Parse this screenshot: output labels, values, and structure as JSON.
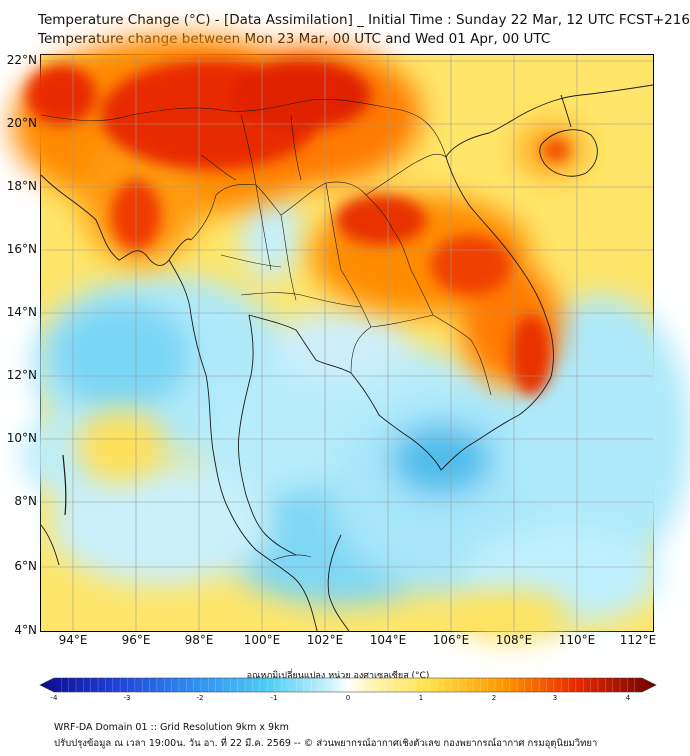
{
  "header": {
    "title": "Temperature Change (°C) - [Data Assimilation] _ Initial Time : Sunday 22 Mar, 12 UTC FCST+216",
    "subtitle": "Temperature change between Mon 23 Mar, 00 UTC and Wed 01 Apr, 00 UTC"
  },
  "map": {
    "lat_ticks": [
      "22°N",
      "20°N",
      "18°N",
      "16°N",
      "14°N",
      "12°N",
      "10°N",
      "8°N",
      "6°N",
      "4°N"
    ],
    "lon_ticks": [
      "94°E",
      "96°E",
      "98°E",
      "100°E",
      "102°E",
      "104°E",
      "106°E",
      "108°E",
      "110°E",
      "112°E"
    ],
    "lat_range": [
      4,
      22.3
    ],
    "lon_range": [
      93,
      112.5
    ],
    "grid": true
  },
  "colorbar": {
    "label": "อุณหภูมิเปลี่ยนแปลง หน่วย องศาเซลเซียส (°C)",
    "ticks": [
      "-4",
      "-3",
      "-2",
      "-1",
      "0",
      "1",
      "2",
      "3",
      "4"
    ],
    "range": [
      -4,
      4
    ],
    "extend": "both"
  },
  "footer": {
    "line1": "WRF-DA Domain 01 :: Grid Resolution 9km x 9km",
    "line2": "ปรับปรุงข้อมูล ณ เวลา 19:00น. วัน อา. ที่ 22 มี.ค. 2569 -- © ส่วนพยากรณ์อากาศเชิงตัวเลข กองพยากรณ์อากาศ กรมอุตุนิยมวิทยา"
  },
  "colors": {
    "deep_red": "#e01a00",
    "orange": "#ff8a00",
    "yellow": "#ffe24a",
    "pale_yellow": "#fff6b8",
    "cyan": "#7fdcf5",
    "light_cyan": "#bdeefc",
    "blue": "#3fb6ea",
    "coast": "#1a1a1a",
    "grid": "#9a9a9a"
  }
}
